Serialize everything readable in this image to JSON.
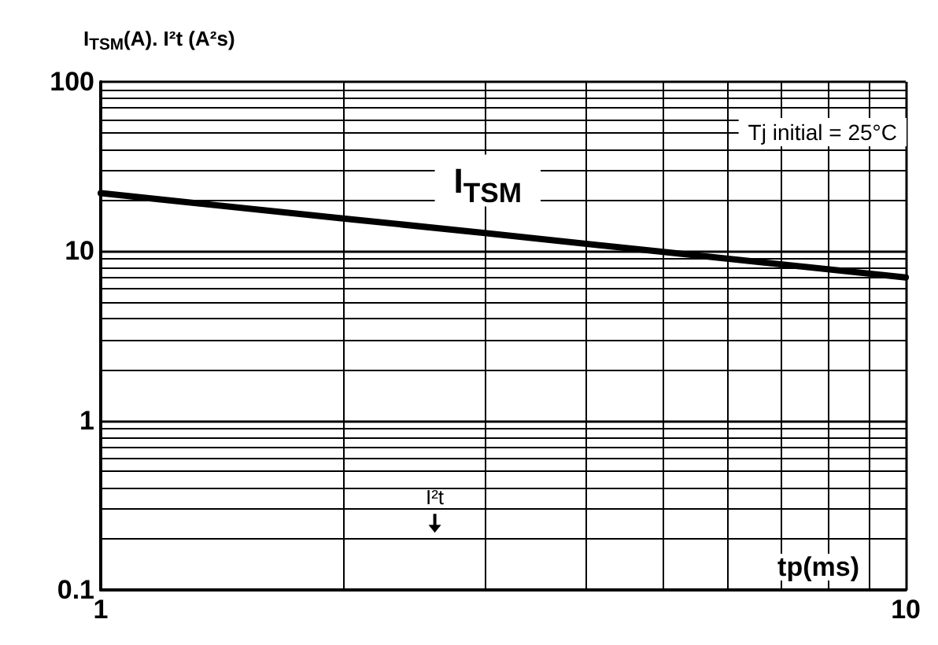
{
  "chart_data": {
    "type": "line",
    "ylabel": "I$_{TSM}$(A). I²t (A²s)",
    "xlabel": "tp(ms)",
    "log": "xy",
    "x": [
      1,
      2,
      3,
      5,
      10
    ],
    "series": [
      {
        "name": "I$_{TSM}$",
        "color": "#000000",
        "values": [
          22,
          15.6,
          12.8,
          9.9,
          7
        ]
      }
    ],
    "xlim": [
      1,
      10
    ],
    "xticks": [
      1,
      10
    ],
    "ylim": [
      0.1,
      100
    ],
    "yticks": [
      0.1,
      1,
      10,
      100
    ],
    "grid": true,
    "legend": false,
    "marker": "none",
    "line_style": "solid",
    "annotations": [
      "Tj initial = 25°C",
      "I²t"
    ]
  }
}
